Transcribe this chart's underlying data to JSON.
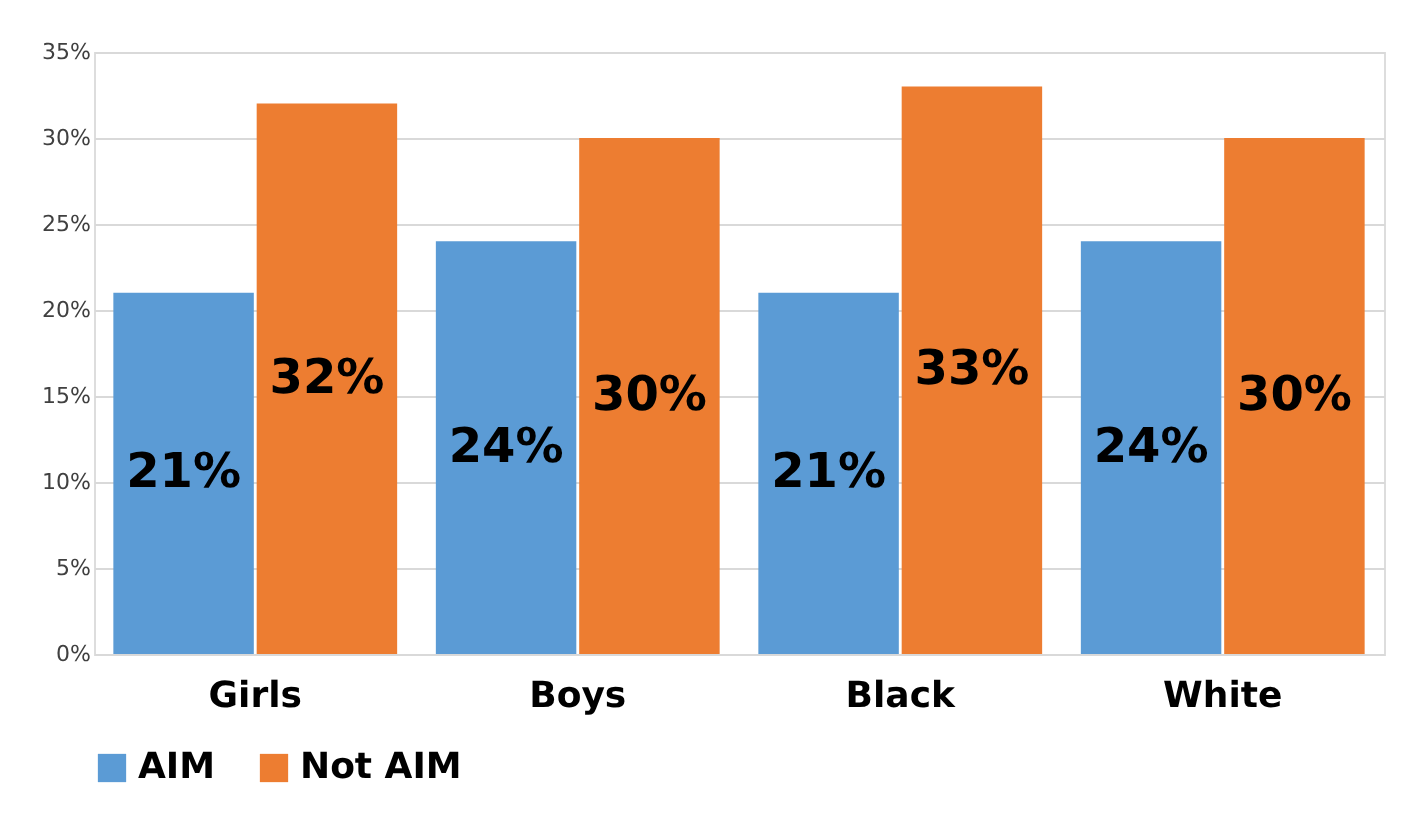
{
  "chart_data": {
    "type": "bar",
    "categories": [
      "Girls",
      "Boys",
      "Black",
      "White"
    ],
    "series": [
      {
        "name": "AIM",
        "color": "#5b9bd5",
        "values": [
          21,
          24,
          21,
          24
        ],
        "value_labels": [
          "21%",
          "24%",
          "21%",
          "24%"
        ]
      },
      {
        "name": "Not AIM",
        "color": "#ed7d31",
        "values": [
          32,
          30,
          33,
          30
        ],
        "value_labels": [
          "32%",
          "30%",
          "33%",
          "30%"
        ]
      }
    ],
    "ylim": [
      0,
      35
    ],
    "yticks": [
      {
        "value": 0,
        "label": "0%"
      },
      {
        "value": 5,
        "label": "5%"
      },
      {
        "value": 10,
        "label": "10%"
      },
      {
        "value": 15,
        "label": "15%"
      },
      {
        "value": 20,
        "label": "20%"
      },
      {
        "value": 25,
        "label": "25%"
      },
      {
        "value": 30,
        "label": "30%"
      },
      {
        "value": 35,
        "label": "35%"
      }
    ],
    "grid": "y",
    "legend": "bottom"
  }
}
